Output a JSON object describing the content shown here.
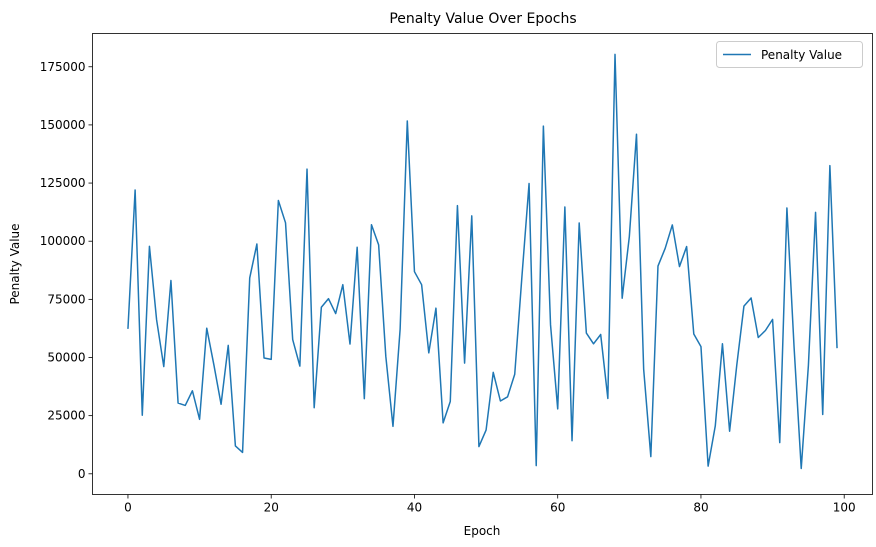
{
  "chart_data": {
    "type": "line",
    "title": "Penalty Value Over Epochs",
    "xlabel": "Epoch",
    "ylabel": "Penalty Value",
    "xlim": [
      -4.95,
      103.95
    ],
    "ylim": [
      -8900,
      189300
    ],
    "xticks": [
      0,
      20,
      40,
      60,
      80,
      100
    ],
    "yticks": [
      0,
      25000,
      50000,
      75000,
      100000,
      125000,
      150000,
      175000
    ],
    "grid": false,
    "legend_position": "top-right",
    "series": [
      {
        "name": "Penalty Value",
        "color": "#1f77b4",
        "x": [
          0,
          1,
          2,
          3,
          4,
          5,
          6,
          7,
          8,
          9,
          10,
          11,
          12,
          13,
          14,
          15,
          16,
          17,
          18,
          19,
          20,
          21,
          22,
          23,
          24,
          25,
          26,
          27,
          28,
          29,
          30,
          31,
          32,
          33,
          34,
          35,
          36,
          37,
          38,
          39,
          40,
          41,
          42,
          43,
          44,
          45,
          46,
          47,
          48,
          49,
          50,
          51,
          52,
          53,
          54,
          55,
          56,
          57,
          58,
          59,
          60,
          61,
          62,
          63,
          64,
          65,
          66,
          67,
          68,
          69,
          70,
          71,
          72,
          73,
          74,
          75,
          76,
          77,
          78,
          79,
          80,
          81,
          82,
          83,
          84,
          85,
          86,
          87,
          88,
          89,
          90,
          91,
          92,
          93,
          94,
          95,
          96,
          97,
          98,
          99
        ],
        "values": [
          62300,
          122000,
          25200,
          97800,
          66200,
          46100,
          83100,
          30400,
          29400,
          35700,
          23400,
          62600,
          46800,
          29900,
          55200,
          12000,
          9200,
          84200,
          98800,
          49800,
          49200,
          117500,
          107900,
          57700,
          46300,
          131000,
          28400,
          71600,
          75300,
          68900,
          81300,
          55800,
          97400,
          32300,
          107100,
          98400,
          50500,
          20400,
          62200,
          151700,
          86900,
          81300,
          52000,
          71200,
          21900,
          31100,
          115300,
          47600,
          110900,
          11700,
          18800,
          43600,
          31300,
          33100,
          42800,
          84600,
          124800,
          3500,
          149500,
          64000,
          27900,
          114700,
          14200,
          107800,
          60500,
          55900,
          59900,
          32400,
          180300,
          75500,
          102000,
          146000,
          45000,
          7400,
          89300,
          96900,
          107000,
          89100,
          97700,
          60100,
          54700,
          3300,
          20600,
          55900,
          18300,
          46700,
          72100,
          75600,
          58600,
          61600,
          66400,
          13400,
          114300,
          54500,
          2300,
          46600,
          112400,
          25500,
          132500,
          54000
        ]
      }
    ]
  }
}
